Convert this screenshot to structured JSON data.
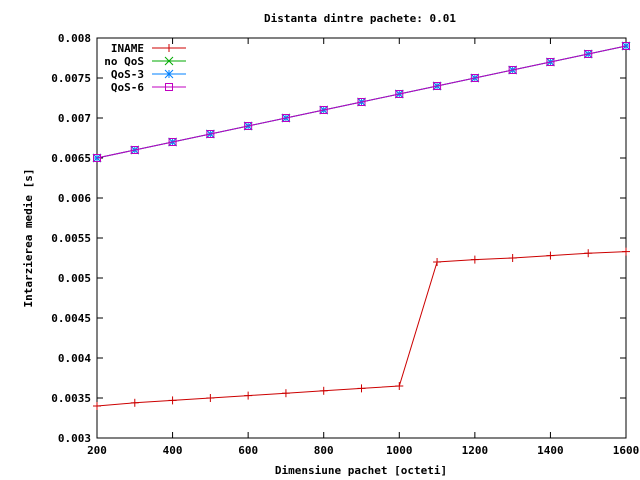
{
  "chart_data": {
    "type": "line",
    "title": "Distanta dintre pachete: 0.01",
    "xlabel": "Dimensiune pachet [octeti]",
    "ylabel": "Intarzierea medie [s]",
    "xlim": [
      200,
      1600
    ],
    "ylim": [
      0.003,
      0.008
    ],
    "xticks": [
      200,
      400,
      600,
      800,
      1000,
      1200,
      1400,
      1600
    ],
    "yticks": [
      0.003,
      0.0035,
      0.004,
      0.0045,
      0.005,
      0.0055,
      0.006,
      0.0065,
      0.007,
      0.0075,
      0.008
    ],
    "xtick_labels": [
      "200",
      "400",
      "600",
      "800",
      "1000",
      "1200",
      "1400",
      "1600"
    ],
    "ytick_labels": [
      "0.003",
      "0.0035",
      "0.004",
      "0.0045",
      "0.005",
      "0.0055",
      "0.006",
      "0.0065",
      "0.007",
      "0.0075",
      "0.008"
    ],
    "grid": false,
    "legend_position": "top-left",
    "x": [
      200,
      300,
      400,
      500,
      600,
      700,
      800,
      900,
      1000,
      1100,
      1200,
      1300,
      1400,
      1500,
      1600
    ],
    "series": [
      {
        "name": "INAME",
        "color": "#cc0000",
        "marker": "plus",
        "values": [
          0.0034,
          0.00344,
          0.00347,
          0.0035,
          0.00353,
          0.00356,
          0.00359,
          0.00362,
          0.00365,
          0.0052,
          0.00523,
          0.00525,
          0.00528,
          0.00531,
          0.00533
        ]
      },
      {
        "name": "no QoS",
        "color": "#00aa00",
        "marker": "cross",
        "values": [
          0.0065,
          0.0066,
          0.0067,
          0.0068,
          0.0069,
          0.007,
          0.0071,
          0.0072,
          0.0073,
          0.0074,
          0.0075,
          0.0076,
          0.0077,
          0.0078,
          0.0079
        ]
      },
      {
        "name": "QoS-3",
        "color": "#0080ff",
        "marker": "star",
        "values": [
          0.0065,
          0.0066,
          0.0067,
          0.0068,
          0.0069,
          0.007,
          0.0071,
          0.0072,
          0.0073,
          0.0074,
          0.0075,
          0.0076,
          0.0077,
          0.0078,
          0.0079
        ]
      },
      {
        "name": "QoS-6",
        "color": "#c000c0",
        "marker": "square",
        "values": [
          0.0065,
          0.0066,
          0.0067,
          0.0068,
          0.0069,
          0.007,
          0.0071,
          0.0072,
          0.0073,
          0.0074,
          0.0075,
          0.0076,
          0.0077,
          0.0078,
          0.0079
        ]
      }
    ]
  }
}
